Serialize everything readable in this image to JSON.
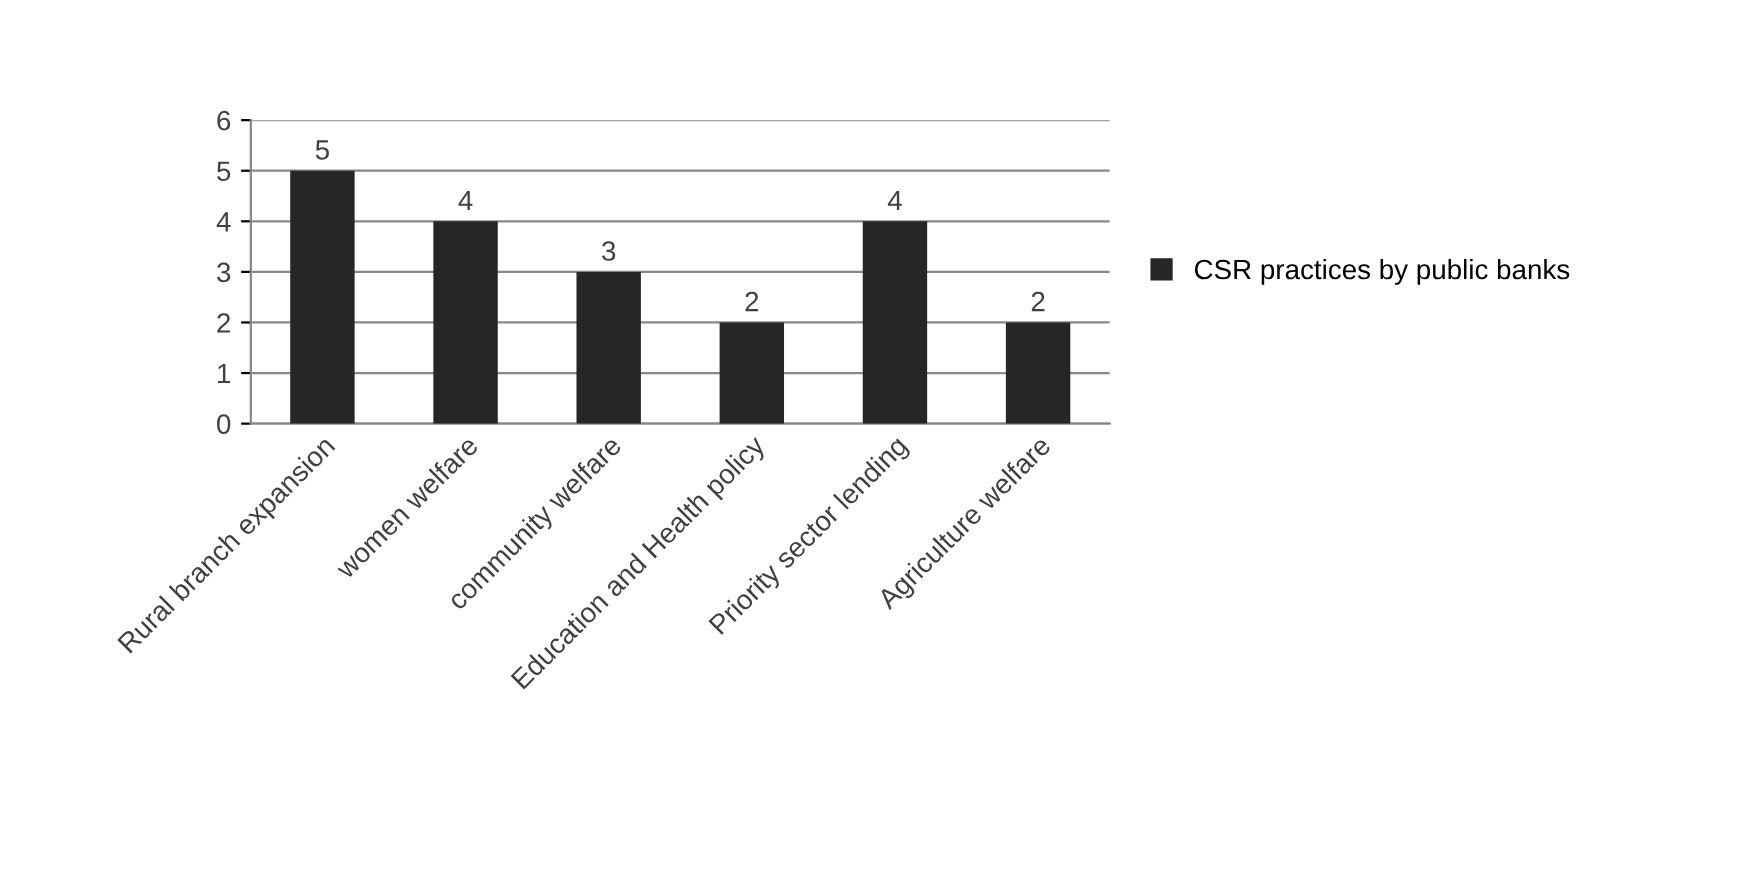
{
  "chart_data": {
    "type": "bar",
    "categories": [
      "Rural branch expansion",
      "women welfare",
      "community welfare",
      "Education and Health policy",
      "Priority sector lending",
      "Agriculture welfare"
    ],
    "series": [
      {
        "name": "CSR practices by public banks",
        "color": "#262626",
        "values": [
          5,
          4,
          3,
          2,
          4,
          2
        ]
      }
    ],
    "ylim": [
      0,
      6
    ],
    "yticks": [
      0,
      1,
      2,
      3,
      4,
      5,
      6
    ],
    "grid": "y",
    "legend": "right",
    "data_labels": true
  }
}
